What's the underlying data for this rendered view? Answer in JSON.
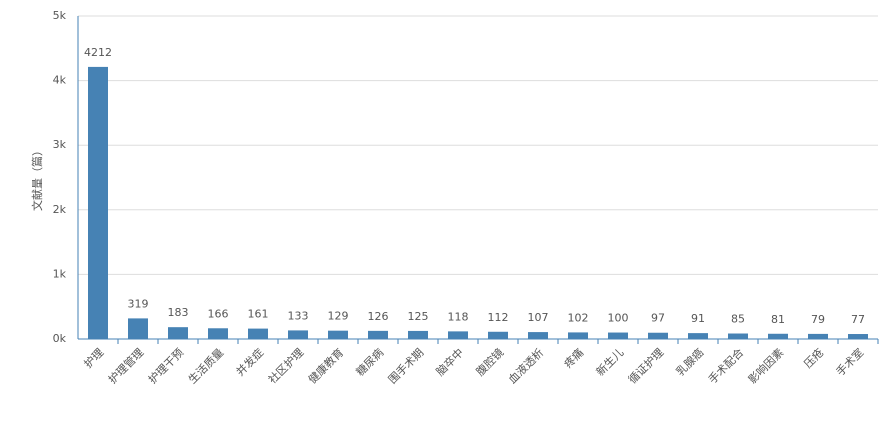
{
  "chart_data": {
    "type": "bar",
    "y_label": "文献量（篇）",
    "categories": [
      "护理",
      "护理管理",
      "护理干预",
      "生活质量",
      "并发症",
      "社区护理",
      "健康教育",
      "糖尿病",
      "围手术期",
      "脑卒中",
      "腹腔镜",
      "血液透析",
      "疼痛",
      "新生儿",
      "循证护理",
      "乳腺癌",
      "手术配合",
      "影响因素",
      "压疮",
      "手术室"
    ],
    "values": [
      4212,
      319,
      183,
      166,
      161,
      133,
      129,
      126,
      125,
      118,
      112,
      107,
      102,
      100,
      97,
      91,
      85,
      81,
      79,
      77
    ],
    "color": "#4682b4",
    "ylim": [
      0,
      5000
    ],
    "yticks": [
      {
        "value": 0,
        "label": "0k"
      },
      {
        "value": 1000,
        "label": "1k"
      },
      {
        "value": 2000,
        "label": "2k"
      },
      {
        "value": 3000,
        "label": "3k"
      },
      {
        "value": 4000,
        "label": "4k"
      },
      {
        "value": 5000,
        "label": "5k"
      }
    ],
    "grid": true
  }
}
